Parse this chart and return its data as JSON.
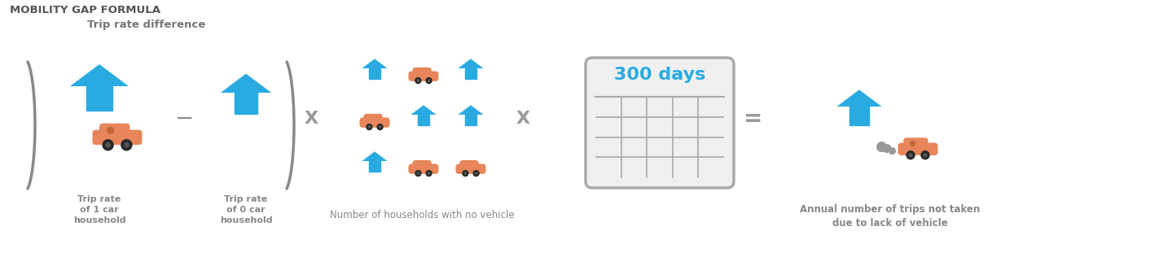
{
  "title": "MOBILITY GAP FORMULA",
  "title_color": "#555555",
  "title_fontsize": 9.5,
  "blue_color": "#29ABE2",
  "orange_color": "#E8855A",
  "gray_color": "#888888",
  "label1": "Trip rate\nof 1 car\nhousehold",
  "label2": "Trip rate\nof 0 car\nhousehold",
  "bracket_label": "Trip rate difference",
  "label3": "Number of households with no vehicle",
  "label4": "Annual number of trips not taken\ndue to lack of vehicle",
  "days_text": "300 days",
  "days_color": "#29ABE2",
  "bg_color": "#ffffff",
  "operator_color": "#888888",
  "cal_grid_cols": 5,
  "cal_grid_rows": 4
}
